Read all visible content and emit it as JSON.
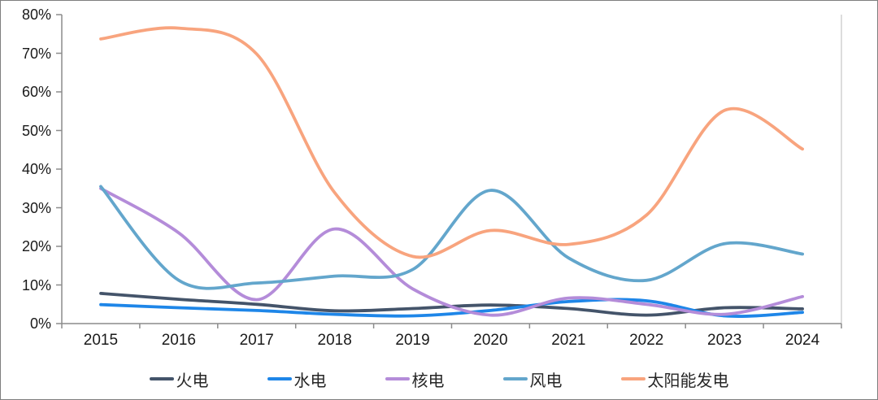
{
  "chart": {
    "background": "#FFFFFF",
    "frame_border_color": "#7F7F7F",
    "axis_color": "#8C8C8C",
    "right_border_color": "#C6C6C6",
    "label_color": "#1A1A1A"
  },
  "chart_data": {
    "type": "line",
    "smooth": true,
    "grid": false,
    "legend_position": "bottom",
    "ylim": [
      0,
      80
    ],
    "y_tick_step": 10,
    "y_ticks": [
      "0%",
      "10%",
      "20%",
      "30%",
      "40%",
      "50%",
      "60%",
      "70%",
      "80%"
    ],
    "categories": [
      "2015",
      "2016",
      "2017",
      "2018",
      "2019",
      "2020",
      "2021",
      "2022",
      "2023",
      "2024"
    ],
    "series": [
      {
        "id": "thermal-power",
        "name": "火电",
        "color": "#44546A",
        "values": [
          7.8,
          6.3,
          5.0,
          3.3,
          3.9,
          4.8,
          3.9,
          2.2,
          4.1,
          3.8
        ]
      },
      {
        "id": "hydro-power",
        "name": "水电",
        "color": "#1E86E8",
        "values": [
          4.9,
          4.1,
          3.4,
          2.4,
          2.0,
          3.4,
          5.7,
          5.9,
          2.0,
          2.9
        ]
      },
      {
        "id": "nuclear-power",
        "name": "核电",
        "color": "#B48CD9",
        "values": [
          35.0,
          23.5,
          6.2,
          24.5,
          9.0,
          2.2,
          6.6,
          5.0,
          2.4,
          7.0
        ]
      },
      {
        "id": "wind-power",
        "name": "风电",
        "color": "#63A6CC",
        "values": [
          35.5,
          11.2,
          10.5,
          12.3,
          14.0,
          34.5,
          17.0,
          11.2,
          20.7,
          18.0
        ]
      },
      {
        "id": "solar-power",
        "name": "太阳能发电",
        "color": "#F8A47E",
        "values": [
          73.7,
          76.5,
          69.8,
          33.9,
          17.4,
          24.1,
          20.5,
          28.1,
          55.2,
          45.2
        ]
      }
    ]
  }
}
